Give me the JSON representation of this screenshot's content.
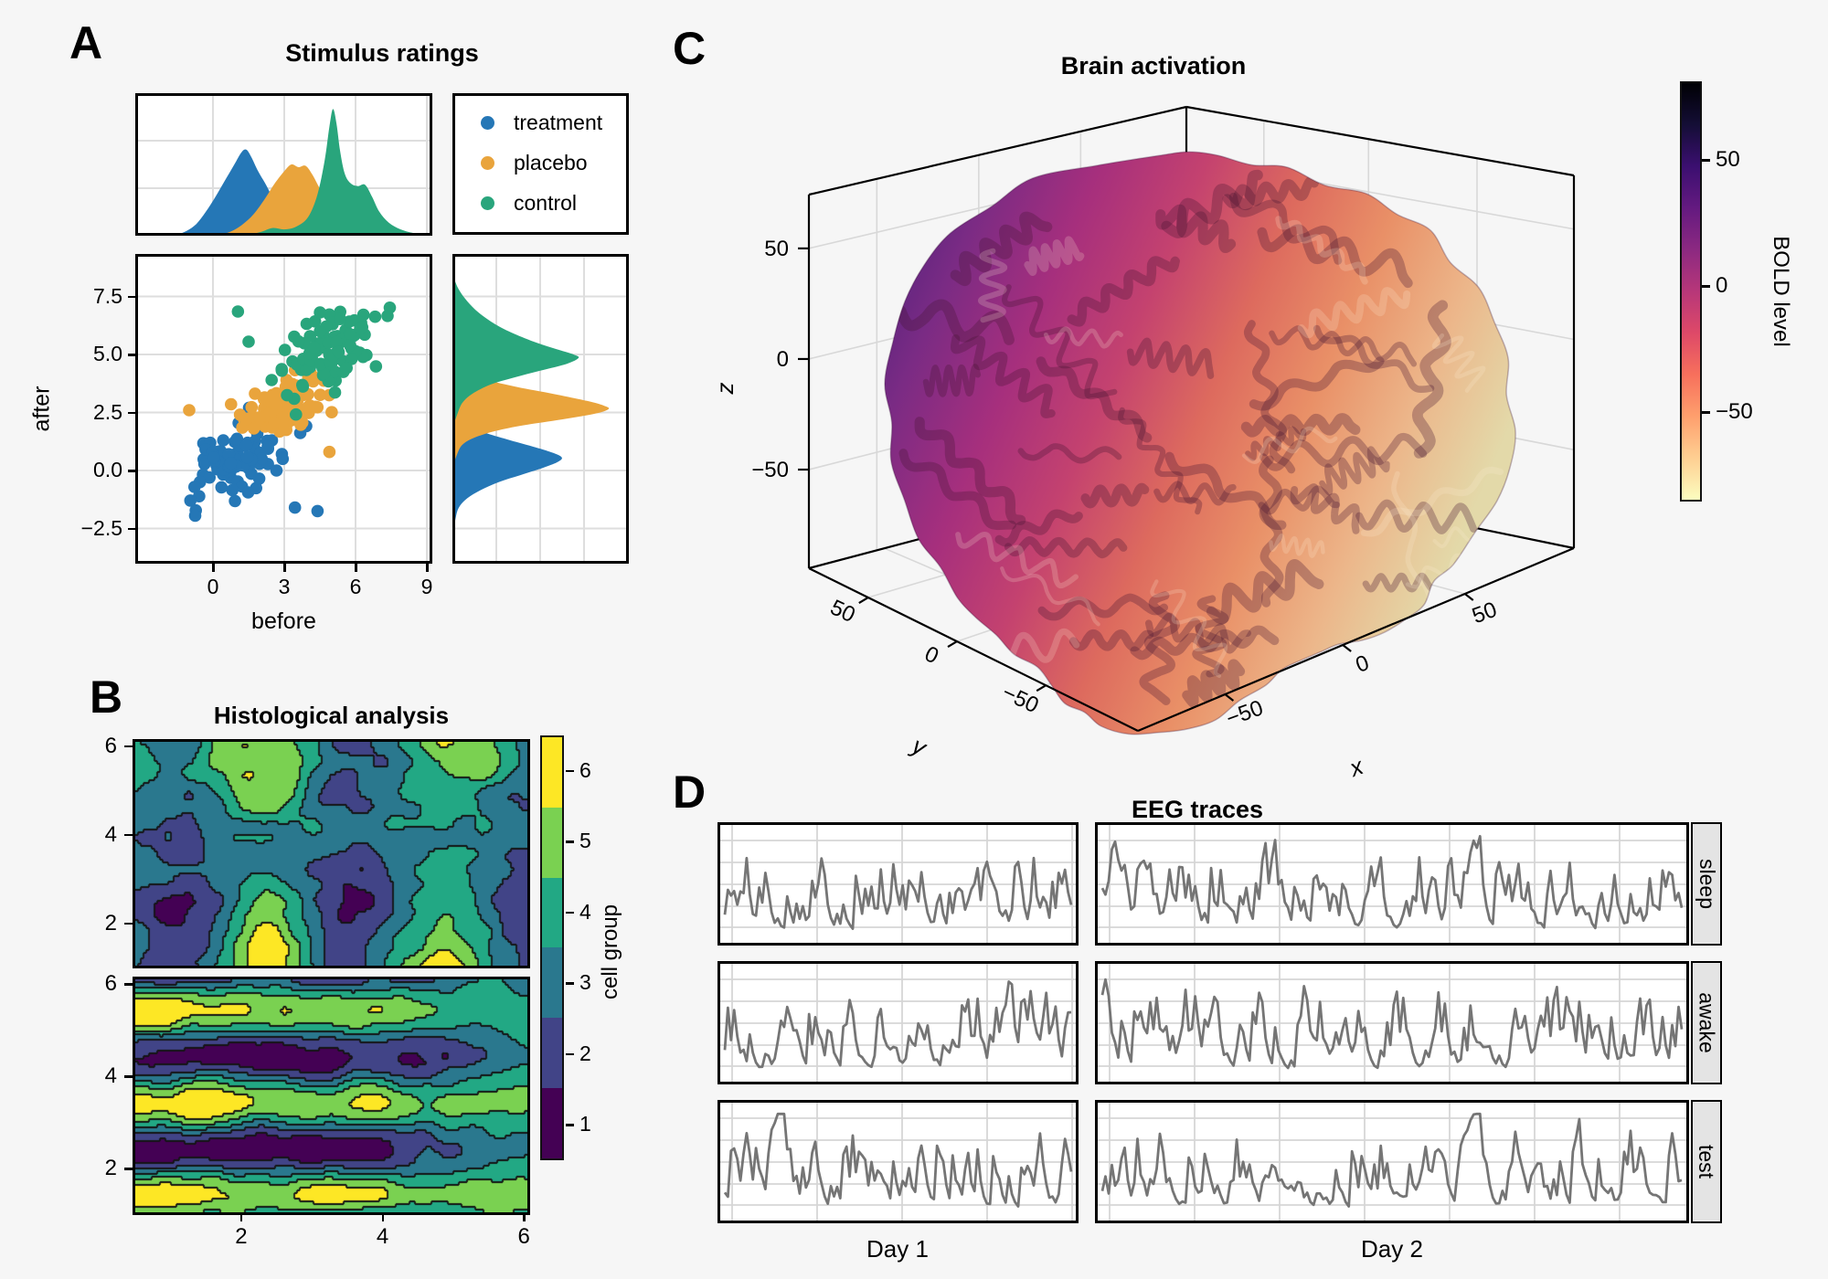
{
  "figure": {
    "background": "#f6f6f6",
    "panel_bg": "#ffffff",
    "grid_color": "#dedede",
    "border_color": "#000000"
  },
  "panels": {
    "a": {
      "label": "A",
      "title": "Stimulus ratings",
      "xlabel": "before",
      "ylabel": "after"
    },
    "b": {
      "label": "B",
      "title": "Histological analysis",
      "colorbar_label": "cell group"
    },
    "c": {
      "label": "C",
      "title": "Brain activation",
      "colorbar_label": "BOLD level",
      "xlabel": "x",
      "ylabel": "y",
      "zlabel": "z"
    },
    "d": {
      "label": "D",
      "title": "EEG traces",
      "col_labels": [
        "Day 1",
        "Day 2"
      ],
      "row_labels": [
        "sleep",
        "awake",
        "test"
      ]
    }
  },
  "chart_data": [
    {
      "id": "a_marginal_top",
      "panel": "A",
      "type": "area",
      "x_range": [
        -3.27,
        9.23
      ],
      "series": [
        {
          "name": "treatment",
          "color": "#2577b6",
          "points": [
            [
              -1.5,
              0
            ],
            [
              -1.1,
              0.03
            ],
            [
              -0.7,
              0.08
            ],
            [
              -0.3,
              0.17
            ],
            [
              0.1,
              0.28
            ],
            [
              0.5,
              0.4
            ],
            [
              0.9,
              0.52
            ],
            [
              1.2,
              0.61
            ],
            [
              1.4,
              0.63
            ],
            [
              1.6,
              0.58
            ],
            [
              1.9,
              0.47
            ],
            [
              2.2,
              0.38
            ],
            [
              2.5,
              0.28
            ],
            [
              2.9,
              0.17
            ],
            [
              3.3,
              0.09
            ],
            [
              3.8,
              0.03
            ],
            [
              4.3,
              0.01
            ],
            [
              4.8,
              0
            ]
          ]
        },
        {
          "name": "placebo",
          "color": "#e9a43c",
          "points": [
            [
              0.2,
              0
            ],
            [
              0.7,
              0.02
            ],
            [
              1.2,
              0.07
            ],
            [
              1.7,
              0.15
            ],
            [
              2.2,
              0.27
            ],
            [
              2.6,
              0.38
            ],
            [
              3.0,
              0.47
            ],
            [
              3.3,
              0.52
            ],
            [
              3.6,
              0.5
            ],
            [
              3.9,
              0.51
            ],
            [
              4.2,
              0.44
            ],
            [
              4.5,
              0.34
            ],
            [
              4.9,
              0.22
            ],
            [
              5.3,
              0.12
            ],
            [
              5.8,
              0.05
            ],
            [
              6.3,
              0.02
            ],
            [
              6.8,
              0
            ]
          ]
        },
        {
          "name": "control",
          "color": "#29a57c",
          "points": [
            [
              1.4,
              0
            ],
            [
              2.0,
              0.02
            ],
            [
              2.5,
              0.05
            ],
            [
              3.0,
              0.04
            ],
            [
              3.5,
              0.06
            ],
            [
              4.0,
              0.13
            ],
            [
              4.4,
              0.3
            ],
            [
              4.7,
              0.55
            ],
            [
              4.9,
              0.8
            ],
            [
              5.05,
              0.93
            ],
            [
              5.2,
              0.82
            ],
            [
              5.35,
              0.62
            ],
            [
              5.55,
              0.45
            ],
            [
              5.8,
              0.38
            ],
            [
              6.1,
              0.36
            ],
            [
              6.4,
              0.37
            ],
            [
              6.7,
              0.28
            ],
            [
              7.0,
              0.17
            ],
            [
              7.4,
              0.09
            ],
            [
              7.9,
              0.04
            ],
            [
              8.5,
              0.01
            ],
            [
              9.0,
              0
            ]
          ]
        }
      ]
    },
    {
      "id": "a_scatter",
      "panel": "A",
      "type": "scatter",
      "xlabel": "before",
      "ylabel": "after",
      "x_ticks": [
        0,
        3,
        6,
        9
      ],
      "x_tick_labels": [
        "0",
        "3",
        "6",
        "9"
      ],
      "y_ticks": [
        7.5,
        5.0,
        2.5,
        0.0,
        -2.5
      ],
      "y_tick_labels": [
        "7.5",
        "5.0",
        "2.5",
        "0.0",
        "−2.5"
      ],
      "x_range": [
        -3.27,
        9.23
      ],
      "y_range": [
        -3.98,
        9.35
      ],
      "legend": [
        {
          "label": "treatment",
          "color": "#2577b6"
        },
        {
          "label": "placebo",
          "color": "#e9a43c"
        },
        {
          "label": "control",
          "color": "#29a57c"
        }
      ],
      "clusters": [
        {
          "name": "treatment",
          "color": "#2577b6",
          "n": 88,
          "mean": [
            1.05,
            0.55
          ],
          "sd": [
            0.95,
            0.9
          ],
          "corr": 0.45,
          "seed": 7,
          "outliers": [
            [
              3.45,
              -1.6
            ],
            [
              -0.75,
              -1.95
            ],
            [
              4.4,
              -1.75
            ]
          ]
        },
        {
          "name": "placebo",
          "color": "#e9a43c",
          "n": 92,
          "mean": [
            2.95,
            2.75
          ],
          "sd": [
            0.9,
            0.75
          ],
          "corr": 0.4,
          "seed": 17,
          "outliers": [
            [
              4.9,
              0.8
            ],
            [
              -1.0,
              2.6
            ]
          ]
        },
        {
          "name": "control",
          "color": "#29a57c",
          "n": 95,
          "mean": [
            5.0,
            5.15
          ],
          "sd": [
            1.0,
            0.9
          ],
          "corr": 0.35,
          "seed": 27,
          "outliers": [
            [
              1.05,
              6.85
            ],
            [
              1.5,
              5.55
            ],
            [
              2.9,
              4.3
            ]
          ]
        }
      ]
    },
    {
      "id": "a_marginal_right",
      "panel": "A",
      "type": "area",
      "orientation": "horizontal",
      "y_range": [
        -3.98,
        9.35
      ],
      "series": [
        {
          "name": "treatment",
          "color": "#2577b6",
          "points": [
            [
              2.6,
              0
            ],
            [
              2.2,
              0.04
            ],
            [
              1.9,
              0.1
            ],
            [
              1.6,
              0.2
            ],
            [
              1.3,
              0.34
            ],
            [
              1.0,
              0.49
            ],
            [
              0.75,
              0.6
            ],
            [
              0.55,
              0.65
            ],
            [
              0.35,
              0.62
            ],
            [
              0.1,
              0.53
            ],
            [
              -0.2,
              0.4
            ],
            [
              -0.5,
              0.27
            ],
            [
              -0.85,
              0.16
            ],
            [
              -1.2,
              0.08
            ],
            [
              -1.6,
              0.03
            ],
            [
              -2.1,
              0.01
            ],
            [
              -2.6,
              0
            ]
          ]
        },
        {
          "name": "placebo",
          "color": "#e9a43c",
          "points": [
            [
              4.9,
              0
            ],
            [
              4.5,
              0.04
            ],
            [
              4.2,
              0.1
            ],
            [
              3.9,
              0.2
            ],
            [
              3.6,
              0.38
            ],
            [
              3.3,
              0.6
            ],
            [
              3.0,
              0.8
            ],
            [
              2.8,
              0.9
            ],
            [
              2.65,
              0.93
            ],
            [
              2.45,
              0.85
            ],
            [
              2.2,
              0.65
            ],
            [
              1.95,
              0.42
            ],
            [
              1.7,
              0.25
            ],
            [
              1.4,
              0.12
            ],
            [
              1.1,
              0.05
            ],
            [
              0.7,
              0.02
            ],
            [
              0.3,
              0
            ]
          ]
        },
        {
          "name": "control",
          "color": "#29a57c",
          "points": [
            [
              8.3,
              0
            ],
            [
              7.8,
              0.03
            ],
            [
              7.3,
              0.08
            ],
            [
              6.8,
              0.15
            ],
            [
              6.3,
              0.25
            ],
            [
              5.9,
              0.36
            ],
            [
              5.5,
              0.5
            ],
            [
              5.2,
              0.63
            ],
            [
              5.0,
              0.72
            ],
            [
              4.85,
              0.75
            ],
            [
              4.6,
              0.68
            ],
            [
              4.3,
              0.52
            ],
            [
              4.0,
              0.36
            ],
            [
              3.7,
              0.22
            ],
            [
              3.3,
              0.11
            ],
            [
              2.9,
              0.05
            ],
            [
              2.4,
              0.02
            ],
            [
              2.0,
              0
            ]
          ]
        }
      ]
    },
    {
      "id": "b_contour",
      "panel": "B",
      "type": "heatmap",
      "x_ticks": [
        2,
        4,
        6
      ],
      "x_tick_labels": [
        "2",
        "4",
        "6"
      ],
      "y_ticks": [
        6,
        4,
        2
      ],
      "y_tick_labels": [
        "6",
        "4",
        "2"
      ],
      "x_range": [
        0.5,
        6.05
      ],
      "y_range": [
        1.05,
        6.1
      ],
      "levels": [
        1,
        2,
        3,
        4,
        5,
        6
      ],
      "colors": [
        "#440154",
        "#414487",
        "#2a788e",
        "#22a884",
        "#7ad151",
        "#fde725"
      ],
      "colorbar": {
        "label": "cell group",
        "tick_labels": [
          "6",
          "5",
          "4",
          "3",
          "2",
          "1"
        ],
        "tick_values": [
          6,
          5,
          4,
          3,
          2,
          1
        ]
      },
      "plots": [
        {
          "name": "top",
          "pattern": "vertical_bands",
          "seed": 5,
          "band_center": 2.32,
          "band_period": 2.62,
          "amp": 1.95,
          "base": 3.45,
          "noise": 1.25
        },
        {
          "name": "bottom",
          "pattern": "horizontal_bands",
          "seed": 9,
          "band_center": 3.42,
          "band_period": 2.0,
          "amp": 2.1,
          "base": 3.4,
          "noise": 1.1,
          "damp_start": 3.2,
          "damp_rate": 0.28
        }
      ]
    },
    {
      "id": "c_brain",
      "panel": "C",
      "type": "surface3d",
      "seed": 42,
      "axes": {
        "x": {
          "label": "x",
          "tick_labels": [
            "−50",
            "0",
            "50"
          ]
        },
        "y": {
          "label": "y",
          "tick_labels": [
            "50",
            "0",
            "−50"
          ]
        },
        "z": {
          "label": "z",
          "tick_labels": [
            "50",
            "0",
            "−50"
          ]
        }
      },
      "colorbar": {
        "label": "BOLD level",
        "tick_labels": [
          "50",
          "0",
          "−50"
        ],
        "colors": [
          "#000004",
          "#140e36",
          "#3b0f70",
          "#641a80",
          "#8c2981",
          "#b73779",
          "#de4968",
          "#f7705c",
          "#fe9f6d",
          "#fecf92",
          "#fcfdbf"
        ]
      },
      "brain_gradient": [
        "#471f7c",
        "#7a2b84",
        "#a62f7d",
        "#c4426f",
        "#dd6a5e",
        "#e99067",
        "#ecb68a",
        "#e3d9a9"
      ]
    },
    {
      "id": "d_eeg",
      "panel": "D",
      "type": "line",
      "line_color": "#757575",
      "grid_color": "#d6d6d6",
      "cols": [
        "Day 1",
        "Day 2"
      ],
      "rows": [
        "sleep",
        "awake",
        "test"
      ],
      "traces": [
        {
          "row": "sleep",
          "col": "Day 1",
          "seed": 101,
          "n": 112
        },
        {
          "row": "sleep",
          "col": "Day 2",
          "seed": 102,
          "n": 182
        },
        {
          "row": "awake",
          "col": "Day 1",
          "seed": 103,
          "n": 112
        },
        {
          "row": "awake",
          "col": "Day 2",
          "seed": 104,
          "n": 182
        },
        {
          "row": "test",
          "col": "Day 1",
          "seed": 105,
          "n": 112
        },
        {
          "row": "test",
          "col": "Day 2",
          "seed": 106,
          "n": 182
        }
      ]
    }
  ]
}
